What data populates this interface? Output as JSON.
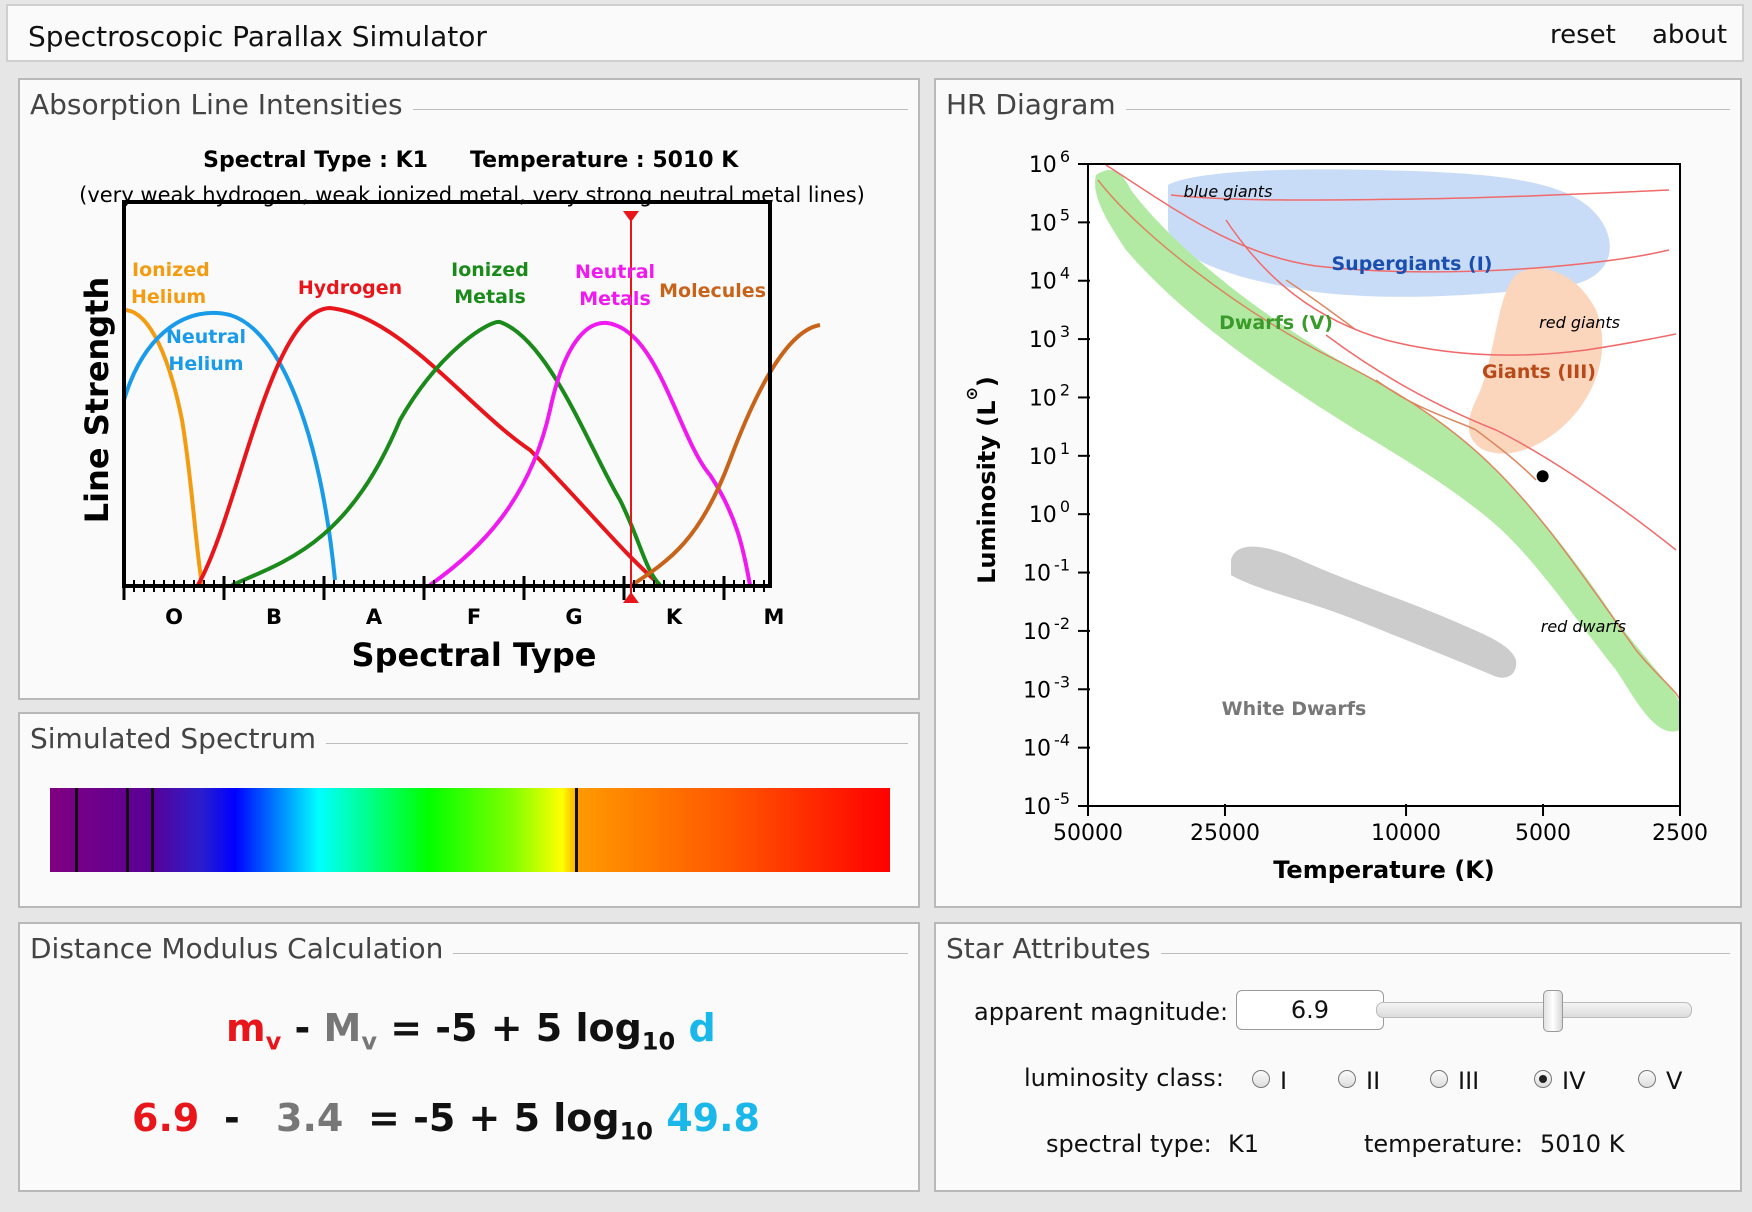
{
  "app": {
    "title": "Spectroscopic Parallax Simulator",
    "menu": [
      "reset",
      "about"
    ]
  },
  "absorption": {
    "title": "Absorption Line Intensities",
    "spectral_type_label": "Spectral Type : K1",
    "temperature_label": "Temperature : 5010 K",
    "description": "(very weak hydrogen, weak ionized metal, very strong neutral metal lines)",
    "chart_data": {
      "type": "line",
      "xlabel": "Spectral Type",
      "ylabel": "Line Strength",
      "categories": [
        "O",
        "B",
        "A",
        "F",
        "G",
        "K",
        "M"
      ],
      "marker_position": "K1",
      "series": [
        {
          "name": "Ionized Helium",
          "color": "#f39c12"
        },
        {
          "name": "Neutral Helium",
          "color": "#1a9bea"
        },
        {
          "name": "Hydrogen",
          "color": "#e8151b"
        },
        {
          "name": "Ionized Metals",
          "color": "#1a8a1a"
        },
        {
          "name": "Neutral Metals",
          "color": "#f019f0"
        },
        {
          "name": "Molecules",
          "color": "#c8641a"
        }
      ]
    }
  },
  "spectrum": {
    "title": "Simulated Spectrum",
    "absorption_lines": [
      0.03,
      0.09,
      0.12,
      0.625
    ]
  },
  "distance": {
    "title": "Distance Modulus Calculation",
    "formula": {
      "m": "m",
      "m_sub": "v",
      "minus": " - ",
      "M": "M",
      "M_sub": "v",
      "rhs": " = -5 + 5 log",
      "log_sub": "10",
      "d": "d"
    },
    "values": {
      "m": "6.9",
      "minus": "-",
      "M": "3.4",
      "rhs": "= -5 + 5 log",
      "log_sub": "10",
      "d": "49.8"
    },
    "colors": {
      "m": "#e8151b",
      "M": "#777777",
      "d": "#1ab8ea"
    }
  },
  "hr": {
    "title": "HR Diagram",
    "chart_data": {
      "type": "scatter",
      "xlabel": "Temperature (K)",
      "ylabel": "Luminosity (L",
      "ylabel_symbol": "⊙",
      "ylabel_close": ")",
      "x_scale": "log",
      "x_reversed": true,
      "xlim": [
        50000,
        2500
      ],
      "x_ticks": [
        "50000",
        "25000",
        "10000",
        "5000",
        "2500"
      ],
      "y_scale": "log",
      "ylim": [
        -5,
        6
      ],
      "y_ticks": [
        {
          "base": "10",
          "exp": "6"
        },
        {
          "base": "10",
          "exp": "5"
        },
        {
          "base": "10",
          "exp": "4"
        },
        {
          "base": "10",
          "exp": "3"
        },
        {
          "base": "10",
          "exp": "2"
        },
        {
          "base": "10",
          "exp": "1"
        },
        {
          "base": "10",
          "exp": "0"
        },
        {
          "base": "10",
          "exp": "-1"
        },
        {
          "base": "10",
          "exp": "-2"
        },
        {
          "base": "10",
          "exp": "-3"
        },
        {
          "base": "10",
          "exp": "-4"
        },
        {
          "base": "10",
          "exp": "-5"
        }
      ],
      "region_labels": {
        "blue_giants": "blue giants",
        "supergiants": "Supergiants (I)",
        "dwarfs": "Dwarfs (V)",
        "red_giants": "red giants",
        "giants": "Giants (III)",
        "red_dwarfs": "red dwarfs",
        "white_dwarfs": "White Dwarfs"
      },
      "star": {
        "temperature": 5010,
        "luminosity_log": 0.65
      }
    }
  },
  "attributes": {
    "title": "Star Attributes",
    "apparent_magnitude_label": "apparent magnitude:",
    "apparent_magnitude_value": "6.9",
    "slider_fraction": 0.56,
    "luminosity_class_label": "luminosity class:",
    "classes": [
      "I",
      "II",
      "III",
      "IV",
      "V"
    ],
    "selected_class": "IV",
    "spectral_type_label": "spectral type:",
    "spectral_type_value": "K1",
    "temperature_label": "temperature:",
    "temperature_value": "5010 K"
  }
}
